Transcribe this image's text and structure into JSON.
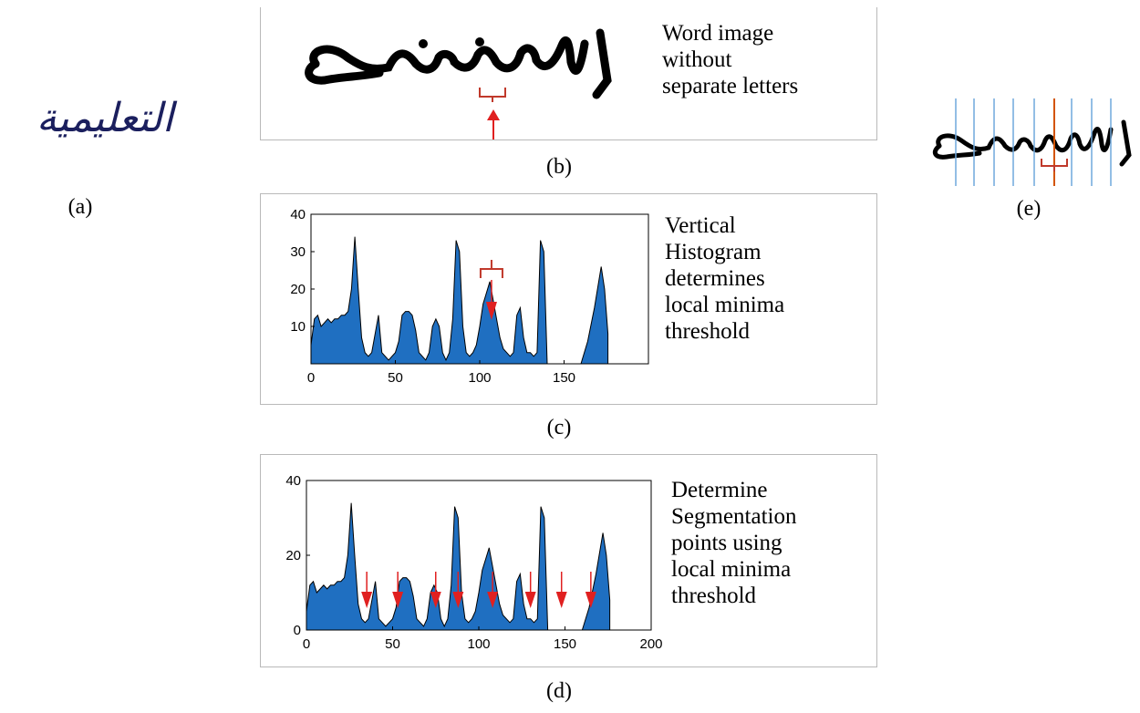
{
  "captions": {
    "a": "(a)",
    "b": "(b)",
    "c": "(c)",
    "d": "(d)",
    "e": "(e)"
  },
  "handwriting_text": "التعليمية",
  "panel_b_text": "Word image\nwithout\nseparate letters",
  "panel_c_text": "Vertical\nHistogram\ndetermines\nlocal minima\nthreshold",
  "panel_d_text": "Determine\nSegmentation\npoints using\nlocal minima\nthreshold",
  "colors": {
    "fill": "#1f6fc1",
    "arrow": "#e02020",
    "bracket": "#c0392b",
    "ink": "#1b1f5e",
    "segment_line": "#6fa8dc"
  },
  "chart_data": [
    {
      "type": "area",
      "xlim": [
        0,
        200
      ],
      "ylim": [
        0,
        40
      ],
      "x_ticks": [
        0,
        50,
        100,
        150
      ],
      "y_ticks": [
        10,
        20,
        30,
        40
      ],
      "x": [
        0,
        2,
        4,
        6,
        8,
        10,
        12,
        14,
        16,
        18,
        20,
        22,
        24,
        26,
        28,
        30,
        32,
        34,
        36,
        38,
        40,
        42,
        44,
        46,
        48,
        50,
        52,
        54,
        56,
        58,
        60,
        62,
        64,
        66,
        68,
        70,
        72,
        74,
        76,
        78,
        80,
        82,
        84,
        86,
        88,
        90,
        92,
        94,
        96,
        98,
        100,
        102,
        104,
        106,
        108,
        110,
        112,
        114,
        116,
        118,
        120,
        122,
        124,
        126,
        128,
        130,
        132,
        134,
        136,
        138,
        140,
        142,
        144,
        146,
        148,
        150,
        152,
        154,
        156,
        158,
        160,
        162,
        164,
        166,
        168,
        170,
        172,
        174,
        176,
        178,
        180
      ],
      "values": [
        5,
        12,
        13,
        10,
        11,
        12,
        11,
        12,
        12,
        13,
        13,
        14,
        20,
        34,
        20,
        7,
        3,
        2,
        3,
        8,
        13,
        3,
        2,
        1,
        2,
        3,
        6,
        13,
        14,
        14,
        13,
        9,
        3,
        2,
        1,
        3,
        10,
        12,
        10,
        3,
        1,
        3,
        12,
        33,
        30,
        10,
        3,
        2,
        3,
        5,
        10,
        16,
        19,
        22,
        17,
        12,
        7,
        4,
        3,
        2,
        3,
        13,
        15,
        7,
        3,
        3,
        2,
        3,
        33,
        30,
        0,
        0,
        0,
        0,
        0,
        0,
        0,
        0,
        0,
        0,
        0,
        0,
        0,
        0,
        0,
        0,
        0,
        0,
        0,
        0,
        0
      ],
      "extra_peak": {
        "x": [
          160,
          164,
          168,
          172,
          174,
          176
        ],
        "values": [
          0,
          6,
          15,
          26,
          20,
          8
        ]
      }
    },
    {
      "type": "area",
      "xlim": [
        0,
        200
      ],
      "ylim": [
        0,
        40
      ],
      "x_ticks": [
        0,
        50,
        100,
        150,
        200
      ],
      "y_ticks": [
        0,
        20,
        40
      ],
      "segmentation_points_x": [
        35,
        53,
        75,
        88,
        108,
        130,
        148,
        165
      ]
    }
  ]
}
